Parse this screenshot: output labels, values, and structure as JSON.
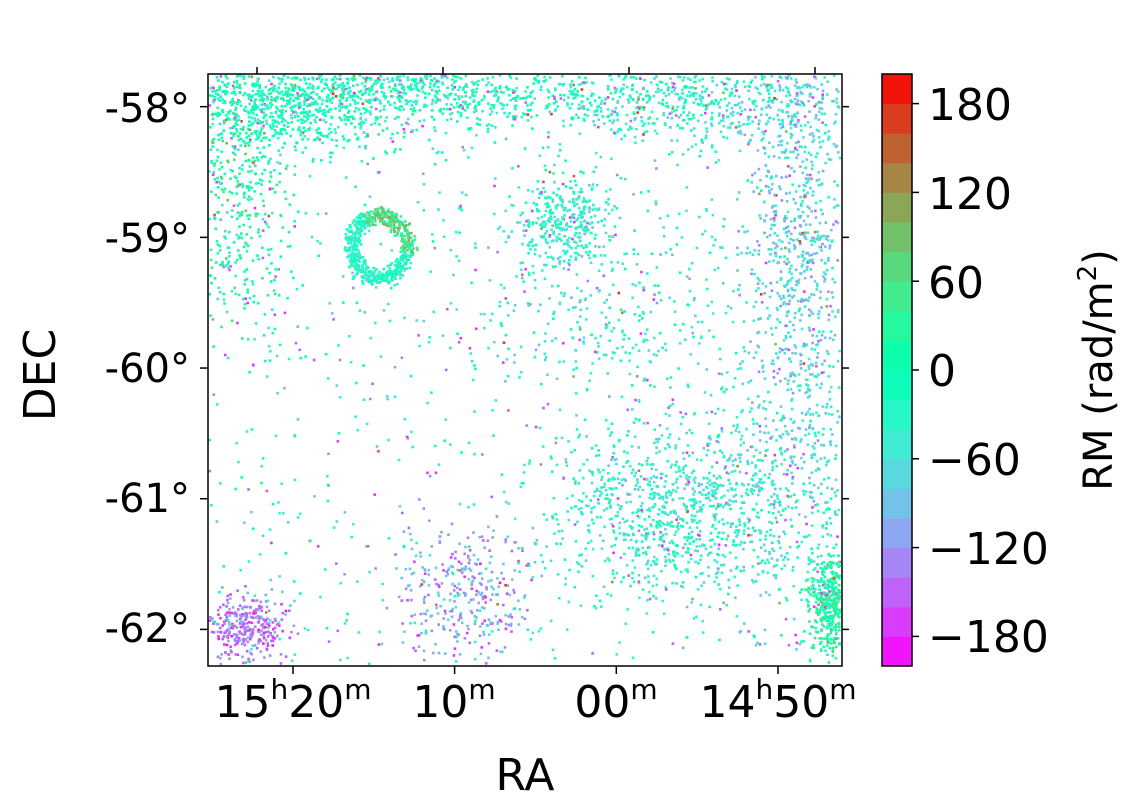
{
  "chart_data": {
    "type": "heatmap",
    "title": "",
    "xlabel": "RA",
    "ylabel": "DEC",
    "x_ticks": [
      {
        "main": "15",
        "sup1": "h",
        "mid": "20",
        "sup2": "m",
        "value_hours": 15.3333
      },
      {
        "main": "",
        "sup1": "",
        "mid": "10",
        "sup2": "m",
        "value_hours": 15.1667
      },
      {
        "main": "",
        "sup1": "",
        "mid": "00",
        "sup2": "m",
        "value_hours": 15.0
      },
      {
        "main": "14",
        "sup1": "h",
        "mid": "50",
        "sup2": "m",
        "value_hours": 14.8333
      }
    ],
    "y_ticks": [
      {
        "label": "-58°",
        "value": -58
      },
      {
        "label": "-59°",
        "value": -59
      },
      {
        "label": "-60°",
        "value": -60
      },
      {
        "label": "-61°",
        "value": -61
      },
      {
        "label": "-62°",
        "value": -62
      }
    ],
    "ylim": [
      -62.28,
      -57.75
    ],
    "colorbar": {
      "label_prefix": "RM (rad/m",
      "label_sup": "2",
      "label_suffix": ")",
      "range": [
        -200,
        200
      ],
      "levels": 20,
      "colormap": "rainbow",
      "ticks": [
        {
          "label": "180",
          "value": 180
        },
        {
          "label": "120",
          "value": 120
        },
        {
          "label": "60",
          "value": 60
        },
        {
          "label": "0",
          "value": 0
        },
        {
          "label": "−60",
          "value": -60
        },
        {
          "label": "−120",
          "value": -120
        },
        {
          "label": "−180",
          "value": -180
        }
      ]
    },
    "features": {
      "ring_center": {
        "ra_hours": 15.245,
        "dec": -59.0
      },
      "dense_regions": [
        {
          "ra_hours": 15.32,
          "dec": -58.1,
          "rm_mean": -10,
          "note": "top-left band"
        },
        {
          "ra_hours": 14.86,
          "dec": -59.5,
          "rm_mean": -60,
          "note": "right edge"
        },
        {
          "ra_hours": 14.96,
          "dec": -61.2,
          "rm_mean": -40,
          "note": "lower-right"
        }
      ]
    }
  }
}
